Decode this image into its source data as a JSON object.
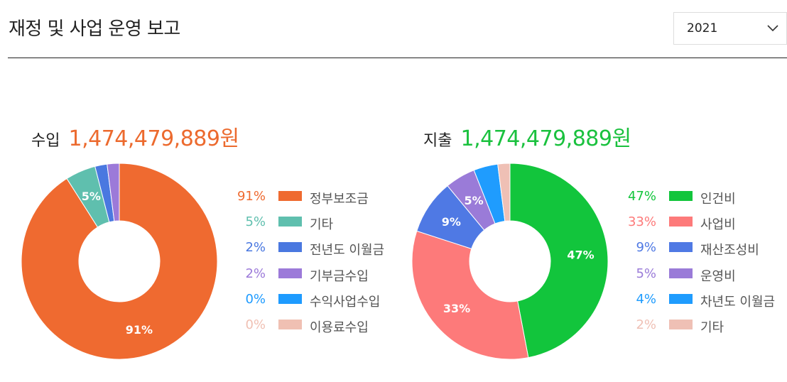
{
  "header": {
    "title": "재정 및 사업 운영 보고",
    "year_select": {
      "value": "2021",
      "icon": "chevron-down-icon"
    }
  },
  "income": {
    "label": "수입",
    "amount": "1,474,479,889원",
    "amount_color": "#ec6a2e"
  },
  "expense": {
    "label": "지출",
    "amount": "1,474,479,889원",
    "amount_color": "#1ac13e"
  },
  "chart_data": [
    {
      "type": "pie",
      "variant": "donut",
      "categories": [
        "정부보조금",
        "기타",
        "전년도 이월금",
        "기부금수입",
        "수익사업수입",
        "이용료수입"
      ],
      "values": [
        91,
        5,
        2,
        2,
        0,
        0
      ],
      "percent_labels": [
        "91%",
        "5%",
        "2%",
        "2%",
        "0%",
        "0%"
      ],
      "slice_labels": [
        "91%",
        "5%",
        "",
        "",
        "",
        ""
      ],
      "colors": [
        "#ef6a30",
        "#5fbfae",
        "#4a78e0",
        "#9c7ad9",
        "#1e9bff",
        "#f0c0b3"
      ],
      "legend": "right"
    },
    {
      "type": "pie",
      "variant": "donut",
      "categories": [
        "인건비",
        "사업비",
        "재산조성비",
        "운영비",
        "차년도 이월금",
        "기타"
      ],
      "values": [
        47,
        33,
        9,
        5,
        4,
        2
      ],
      "percent_labels": [
        "47%",
        "33%",
        "9%",
        "5%",
        "4%",
        "2%"
      ],
      "slice_labels": [
        "47%",
        "33%",
        "9%",
        "5%",
        "",
        ""
      ],
      "colors": [
        "#12c53c",
        "#fd7a7a",
        "#4f79e4",
        "#9a7bd8",
        "#1f9cfe",
        "#efc0b5"
      ],
      "legend": "right"
    }
  ]
}
